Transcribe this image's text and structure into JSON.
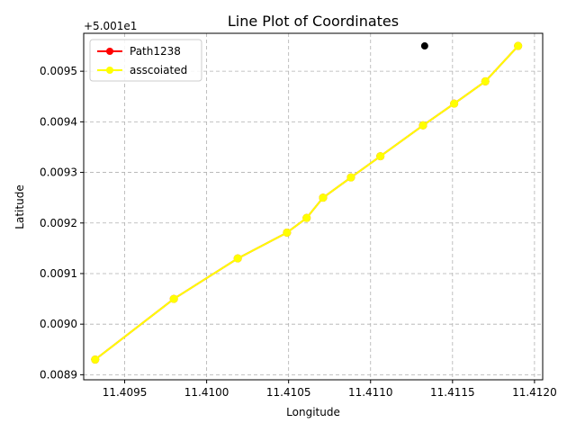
{
  "chart_data": {
    "type": "line",
    "title": "Line Plot of Coordinates",
    "xlabel": "Longitude",
    "ylabel": "Latitude",
    "y_offset_label": "+5.001e1",
    "xlim": [
      11.40925,
      11.41205
    ],
    "ylim": [
      0.00889,
      0.009575
    ],
    "grid": true,
    "legend_position": "upper-left",
    "x_ticks": [
      11.4095,
      11.41,
      11.4105,
      11.411,
      11.4115,
      11.412
    ],
    "x_tick_labels": [
      "11.4095",
      "11.4100",
      "11.4105",
      "11.4110",
      "11.4115",
      "11.4120"
    ],
    "y_ticks": [
      0.0089,
      0.009,
      0.0091,
      0.0092,
      0.0093,
      0.0094,
      0.0095
    ],
    "y_tick_labels": [
      "0.0089",
      "0.0090",
      "0.0091",
      "0.0092",
      "0.0093",
      "0.0094",
      "0.0095"
    ],
    "series": [
      {
        "name": "Path1238",
        "color": "#ff0000",
        "marker": "circle",
        "x": [
          11.40932,
          11.4098,
          11.41019,
          11.41049,
          11.41061,
          11.41071,
          11.41088,
          11.41106,
          11.41132,
          11.41151,
          11.4117,
          11.4119
        ],
        "y": [
          0.00893,
          0.00905,
          0.00913,
          0.009181,
          0.00921,
          0.00925,
          0.00929,
          0.009332,
          0.009393,
          0.009436,
          0.00948,
          0.00955
        ]
      },
      {
        "name": "asscoiated",
        "color": "#ffff00",
        "marker": "circle",
        "x": [
          11.40932,
          11.4098,
          11.41019,
          11.41049,
          11.41061,
          11.41071,
          11.41088,
          11.41106,
          11.41132,
          11.41151,
          11.4117,
          11.4119
        ],
        "y": [
          0.00893,
          0.00905,
          0.00913,
          0.009181,
          0.00921,
          0.00925,
          0.00929,
          0.009332,
          0.009393,
          0.009436,
          0.00948,
          0.00955
        ]
      }
    ],
    "extra_points": [
      {
        "x": 11.41133,
        "y": 0.00955,
        "color": "#000000"
      }
    ]
  }
}
